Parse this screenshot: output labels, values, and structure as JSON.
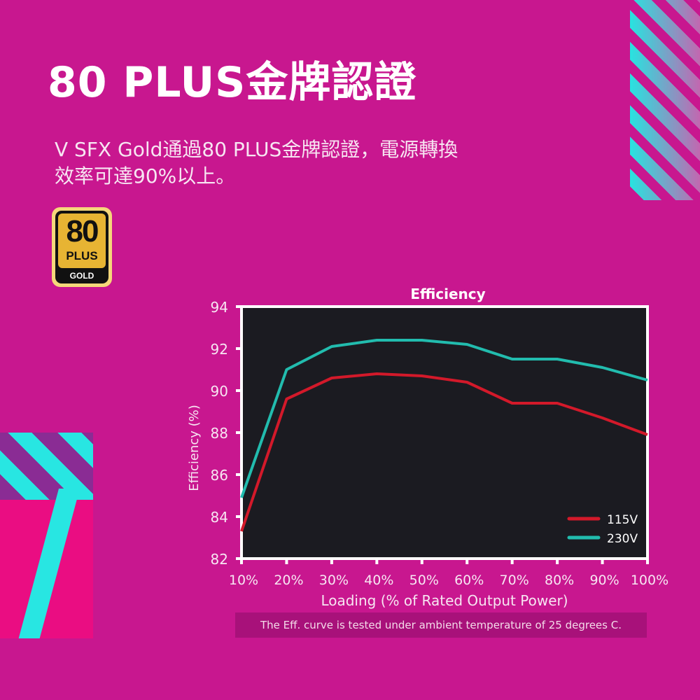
{
  "header": {
    "title": "80 PLUS金牌認證",
    "subtitle_line1": "V SFX Gold通過80 PLUS金牌認證，電源轉換",
    "subtitle_line2": "效率可達90%以上。"
  },
  "badge": {
    "number": "80",
    "plus": "PLUS",
    "tier": "GOLD"
  },
  "colors": {
    "background": "#c8178f",
    "plot_bg": "#1b1b21",
    "series_115v": "#d3192a",
    "series_230v": "#22bcae",
    "accent_cyan": "#28e6e2"
  },
  "footnote": "The Eff. curve is tested under ambient temperature of 25 degrees C.",
  "chart_data": {
    "type": "line",
    "title": "Efficiency",
    "xlabel": "Loading (% of Rated Output Power)",
    "ylabel": "Efficiency (%)",
    "categories": [
      "10%",
      "20%",
      "30%",
      "40%",
      "50%",
      "60%",
      "70%",
      "80%",
      "90%",
      "100%"
    ],
    "x": [
      10,
      20,
      30,
      40,
      50,
      60,
      70,
      80,
      90,
      100
    ],
    "series": [
      {
        "name": "115V",
        "color": "#d3192a",
        "values": [
          83.3,
          89.6,
          90.6,
          90.8,
          90.7,
          90.4,
          89.4,
          89.4,
          88.7,
          87.9
        ]
      },
      {
        "name": "230V",
        "color": "#22bcae",
        "values": [
          84.9,
          91.0,
          92.1,
          92.4,
          92.4,
          92.2,
          91.5,
          91.5,
          91.1,
          90.5
        ]
      }
    ],
    "yticks": [
      82,
      84,
      86,
      88,
      90,
      92,
      94
    ],
    "ylim": [
      82,
      94
    ],
    "xlim": [
      10,
      100
    ],
    "grid": false,
    "legend_position": "lower right"
  }
}
